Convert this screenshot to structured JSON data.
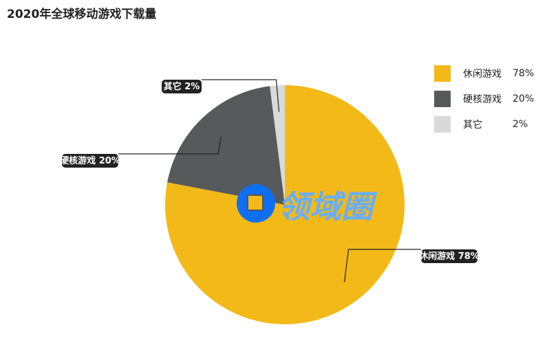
{
  "title": "2020年全球移动游戏下载量",
  "watermark": "领域圈",
  "chart_data": {
    "type": "pie",
    "title": "2020年全球移动游戏下载量",
    "categories": [
      "休闲游戏",
      "硬核游戏",
      "其它"
    ],
    "values": [
      78,
      20,
      2
    ],
    "labels": [
      "休闲游戏 78%",
      "硬核游戏 20%",
      "其它 2%"
    ],
    "percent_labels": [
      "78%",
      "20%",
      "2%"
    ],
    "colors": [
      "#f2b918",
      "#575a5a",
      "#d9d9d9"
    ],
    "legend_position": "right",
    "start": "top, clockwise"
  }
}
